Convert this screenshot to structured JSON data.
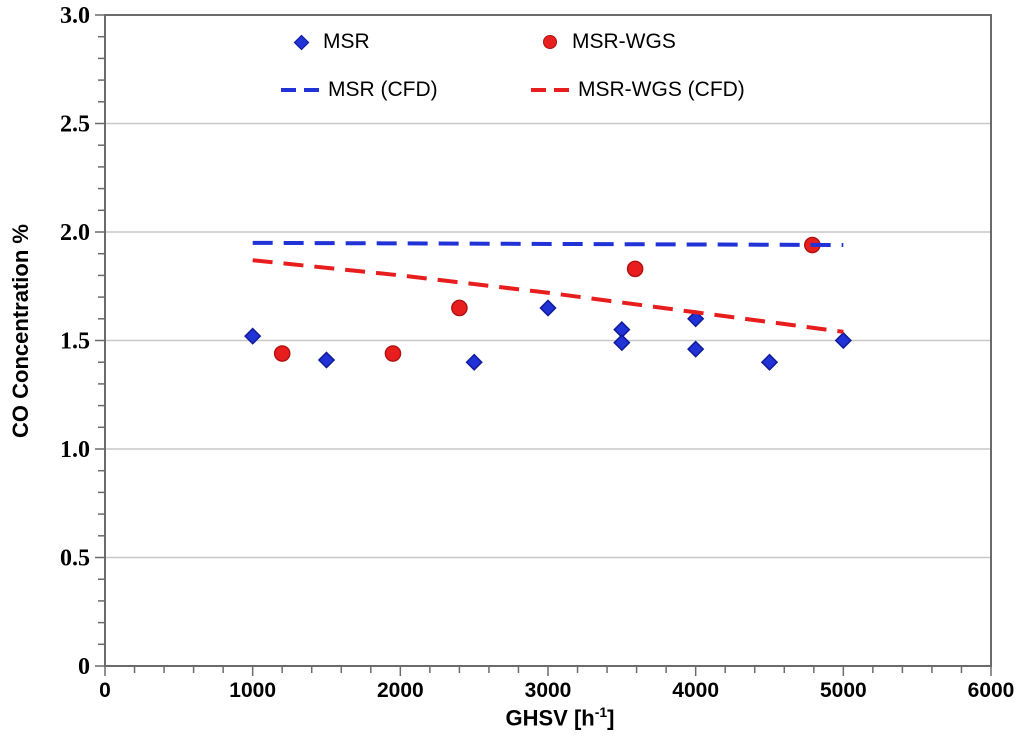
{
  "chart_data": {
    "type": "scatter",
    "title": "",
    "ylabel": "CO Concentration %",
    "xlabel_parts": {
      "pre": "GHSV [h",
      "sup": "-1",
      "post": "]"
    },
    "xlim": [
      0,
      6000
    ],
    "ylim": [
      0,
      3.0
    ],
    "grid": "horizontal-only",
    "legend_position": "top-left-inside",
    "x_ticks": {
      "major": [
        0,
        1000,
        2000,
        3000,
        4000,
        5000,
        6000
      ],
      "labels": [
        "0",
        "1000",
        "2000",
        "3000",
        "4000",
        "5000",
        "6000"
      ],
      "minor_step": 200
    },
    "y_ticks": {
      "major": [
        0,
        0.5,
        1.0,
        1.5,
        2.0,
        2.5,
        3.0
      ],
      "labels": [
        "0",
        "0.5",
        "1.0",
        "1.5",
        "2.0",
        "2.5",
        "3.0"
      ],
      "minor_step": 0.1
    },
    "series": [
      {
        "name": "MSR",
        "style": "scatter",
        "marker": "diamond",
        "color": "#2133d6",
        "edge": "#121c9e",
        "points": [
          [
            1000,
            1.52
          ],
          [
            1500,
            1.41
          ],
          [
            2500,
            1.4
          ],
          [
            3000,
            1.65
          ],
          [
            3500,
            1.55
          ],
          [
            3500,
            1.49
          ],
          [
            4000,
            1.6
          ],
          [
            4000,
            1.46
          ],
          [
            4500,
            1.4
          ],
          [
            5000,
            1.5
          ]
        ]
      },
      {
        "name": "MSR-WGS",
        "style": "scatter",
        "marker": "circle",
        "color": "#e81e1e",
        "edge": "#b01010",
        "points": [
          [
            1200,
            1.44
          ],
          [
            1950,
            1.44
          ],
          [
            2400,
            1.65
          ],
          [
            3590,
            1.83
          ],
          [
            4790,
            1.94
          ]
        ]
      },
      {
        "name": "MSR (CFD)",
        "style": "dashed-line",
        "color": "#2133d6",
        "points": [
          [
            1000,
            1.95
          ],
          [
            5000,
            1.94
          ]
        ]
      },
      {
        "name": "MSR-WGS (CFD)",
        "style": "dashed-line",
        "color": "#e81e1e",
        "points": [
          [
            1000,
            1.87
          ],
          [
            2000,
            1.8
          ],
          [
            3000,
            1.72
          ],
          [
            4000,
            1.63
          ],
          [
            5000,
            1.54
          ]
        ]
      }
    ],
    "colors": {
      "blue": "#2133d6",
      "blue_edge": "#121c9e",
      "red": "#e81e1e",
      "red_edge": "#b01010",
      "grid": "#c8c8c8",
      "frame": "#6b6b6b",
      "tick": "#6b6b6b",
      "text": "#000000"
    }
  }
}
